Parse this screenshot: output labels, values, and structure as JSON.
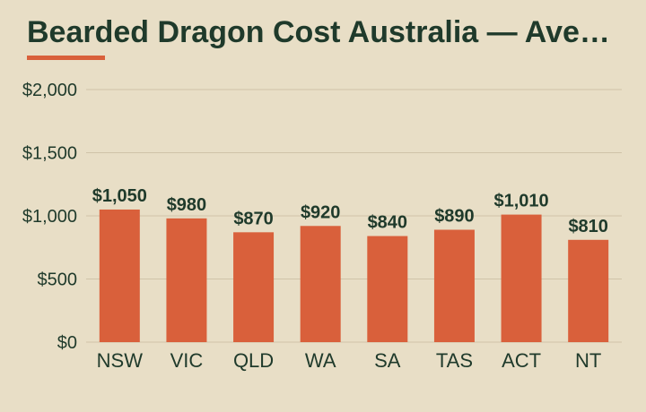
{
  "chart_data": {
    "type": "bar",
    "title": "Bearded Dragon Cost Australia — Ave…",
    "categories": [
      "NSW",
      "VIC",
      "QLD",
      "WA",
      "SA",
      "TAS",
      "ACT",
      "NT"
    ],
    "values": [
      1050,
      980,
      870,
      920,
      840,
      890,
      1010,
      810
    ],
    "value_labels": [
      "$1,050",
      "$980",
      "$870",
      "$920",
      "$840",
      "$890",
      "$1,010",
      "$810"
    ],
    "ylim": [
      0,
      2000
    ],
    "yticks": [
      0,
      500,
      1000,
      1500,
      2000
    ],
    "ytick_labels": [
      "$0",
      "$500",
      "$1,000",
      "$1,500",
      "$2,000"
    ],
    "xlabel": "",
    "ylabel": "",
    "grid": "horizontal",
    "legend": "none",
    "bar_color": "#d9603b",
    "text_color": "#1f3a2b",
    "background_color": "#e8dec6"
  }
}
